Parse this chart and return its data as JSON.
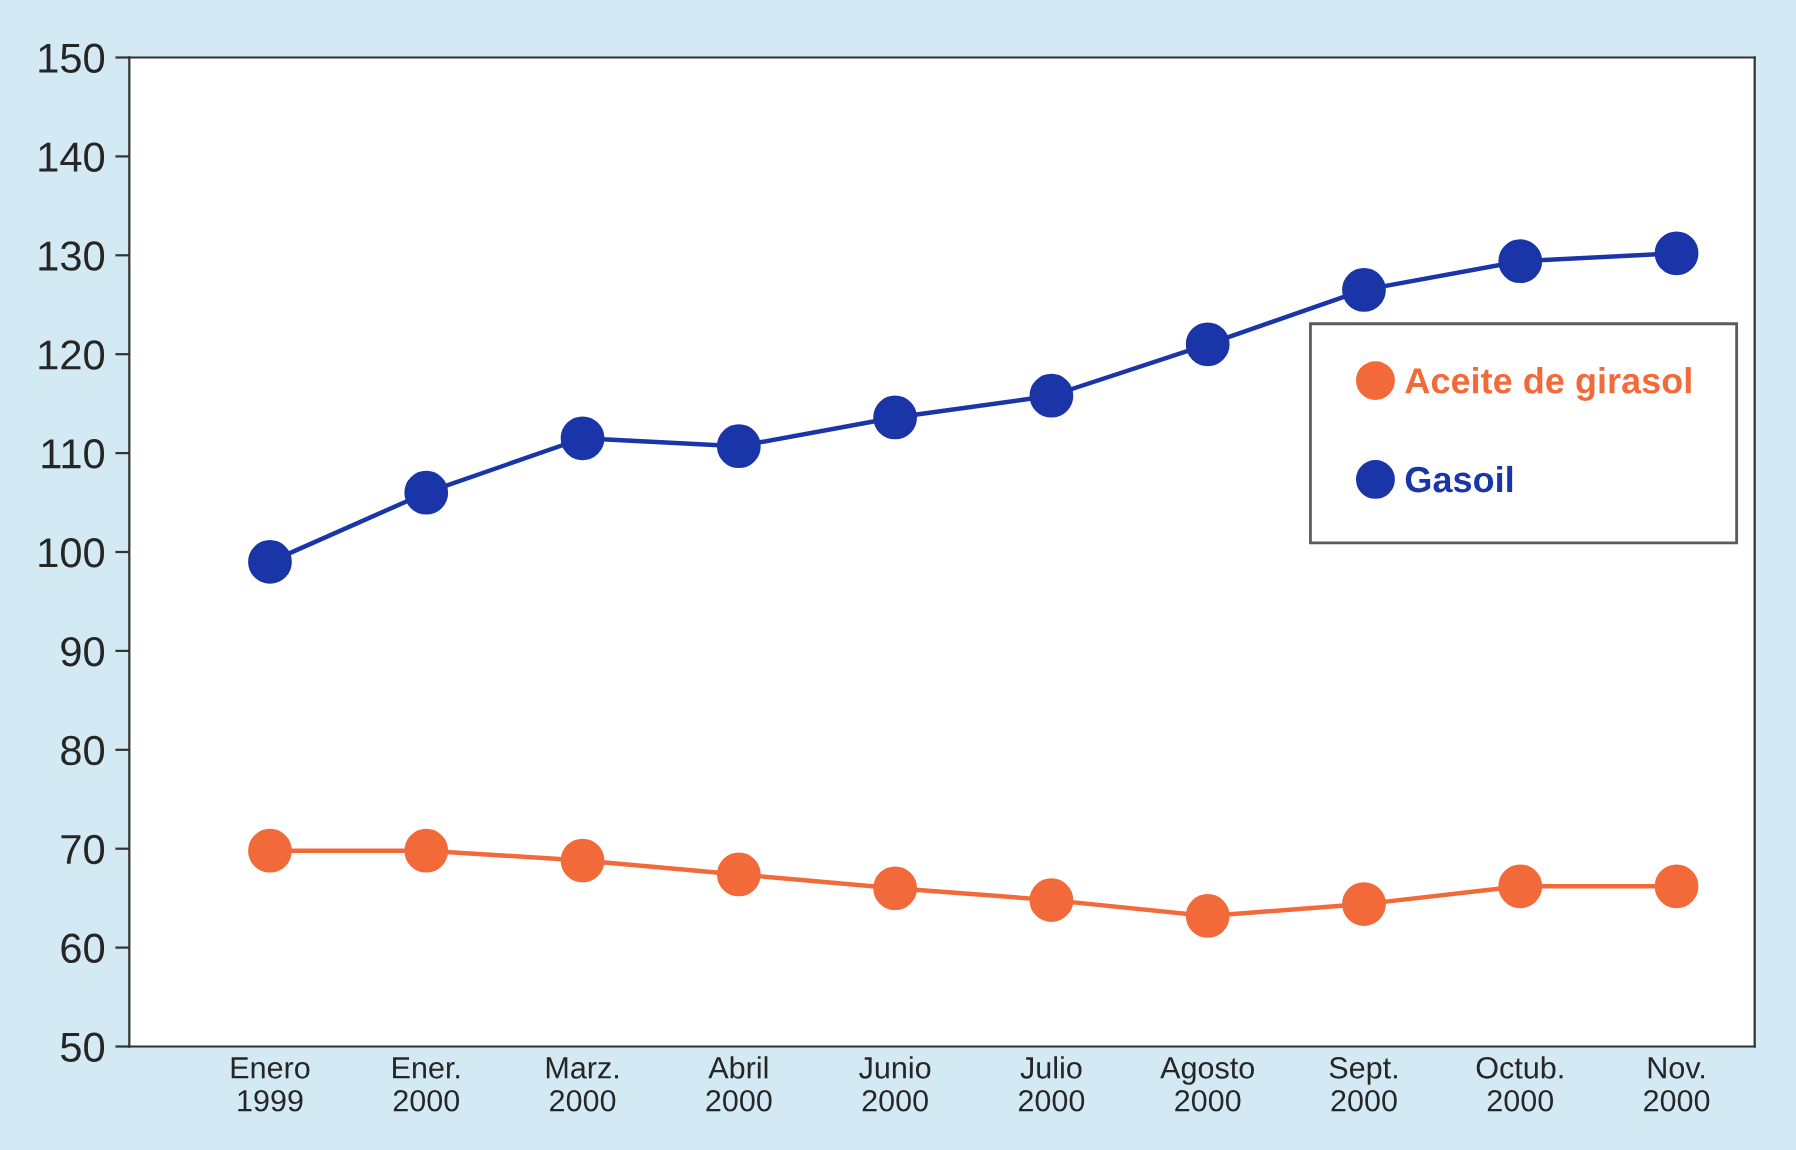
{
  "chart_data": {
    "type": "line",
    "categories": [
      "Enero\n1999",
      "Ener.\n2000",
      "Marz.\n2000",
      "Abril\n2000",
      "Junio\n2000",
      "Julio\n2000",
      "Agosto\n2000",
      "Sept.\n2000",
      "Octub.\n2000",
      "Nov.\n2000"
    ],
    "series": [
      {
        "name": "Aceite de girasol",
        "color": "#f26a3a",
        "values": [
          69.8,
          69.8,
          68.8,
          67.4,
          66.0,
          64.8,
          63.2,
          64.4,
          66.2,
          66.2
        ]
      },
      {
        "name": "Gasoil",
        "color": "#1a35a8",
        "values": [
          99,
          106,
          111.5,
          110.7,
          113.6,
          115.8,
          121,
          126.5,
          129.4,
          130.2
        ]
      }
    ],
    "ylim": [
      50,
      150
    ],
    "yticks": [
      50,
      60,
      70,
      80,
      90,
      100,
      110,
      120,
      130,
      140,
      150
    ],
    "grid": false,
    "legend": "right",
    "marker": "circle",
    "line_style": "solid"
  }
}
